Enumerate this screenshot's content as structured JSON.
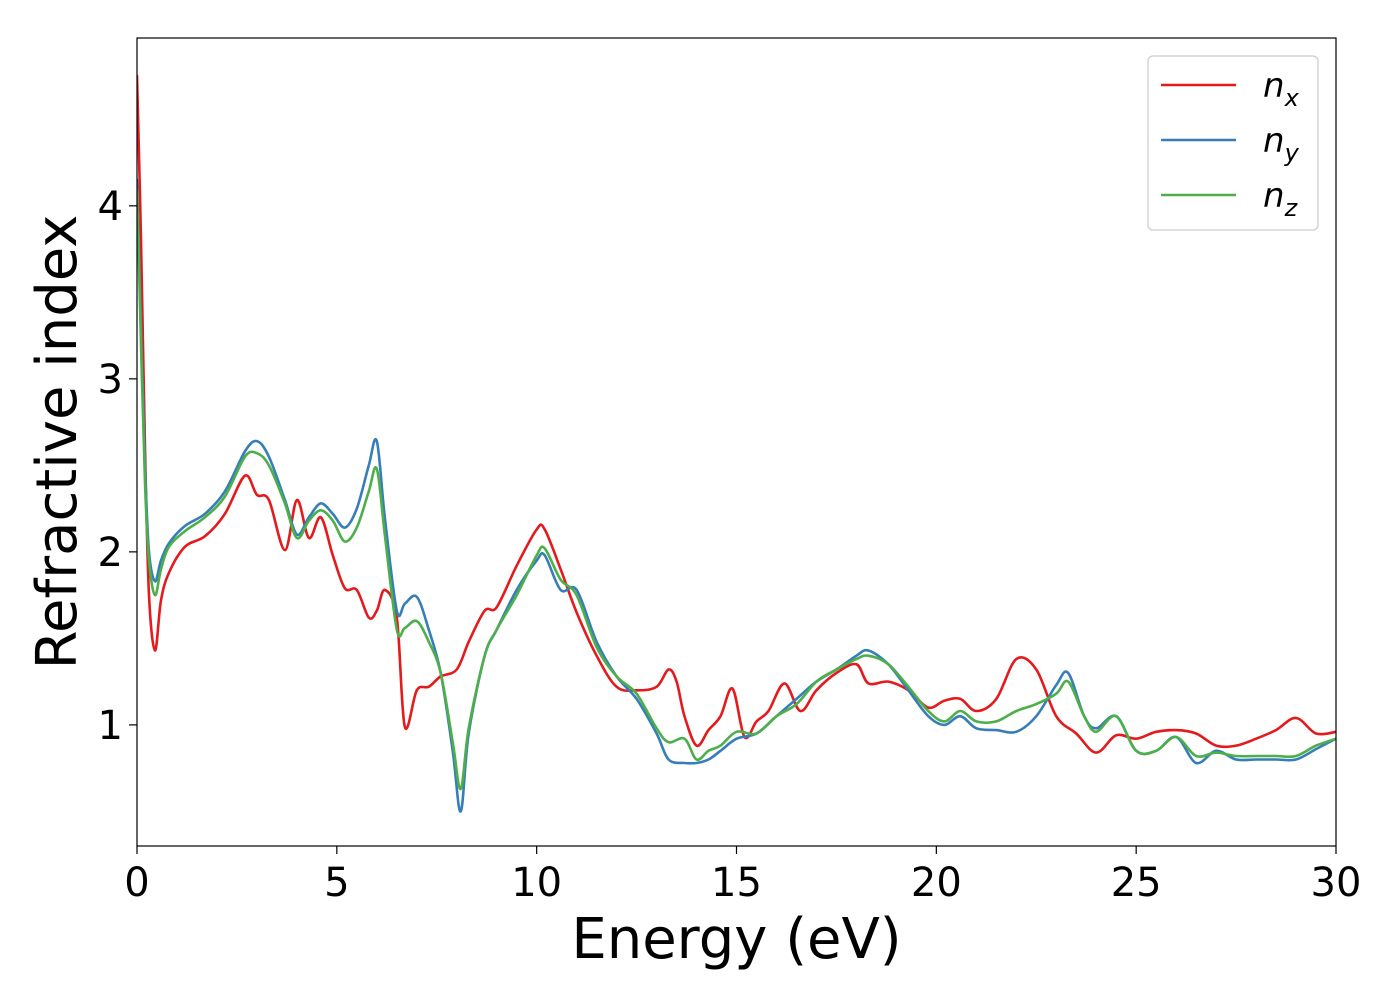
{
  "chart_data": {
    "type": "line",
    "title": "",
    "xlabel": "Energy (eV)",
    "ylabel": "Refractive index",
    "xlim": [
      0,
      30
    ],
    "ylim": [
      0.3,
      4.97
    ],
    "xticks": [
      0,
      5,
      10,
      15,
      20,
      25,
      30
    ],
    "xtick_labels": [
      "0",
      "5",
      "10",
      "15",
      "20",
      "25",
      "30"
    ],
    "yticks": [
      1,
      2,
      3,
      4
    ],
    "ytick_labels": [
      "1",
      "2",
      "3",
      "4"
    ],
    "grid": false,
    "legend_position": "top-right",
    "series": [
      {
        "name": "n_x",
        "label_base": "n",
        "label_sub": "x",
        "color": "#e41a1c",
        "x": [
          0,
          0.1,
          0.2,
          0.3,
          0.45,
          0.6,
          0.8,
          1.2,
          1.7,
          2.2,
          2.7,
          3.0,
          3.3,
          3.7,
          4.0,
          4.3,
          4.6,
          4.9,
          5.2,
          5.5,
          5.8,
          6.0,
          6.2,
          6.5,
          6.7,
          7.0,
          7.3,
          7.6,
          8.0,
          8.3,
          8.7,
          9.0,
          9.5,
          10.0,
          10.2,
          10.6,
          11.0,
          11.5,
          12.0,
          12.5,
          13.0,
          13.3,
          13.5,
          13.7,
          14.0,
          14.3,
          14.6,
          14.9,
          15.2,
          15.5,
          15.8,
          16.2,
          16.6,
          17.0,
          17.5,
          18.0,
          18.3,
          18.8,
          19.3,
          19.8,
          20.2,
          20.6,
          21.0,
          21.5,
          22.0,
          22.5,
          23.0,
          23.5,
          24.0,
          24.5,
          25.0,
          25.5,
          26.0,
          26.5,
          27.0,
          27.5,
          28.0,
          28.5,
          29.0,
          29.5,
          30.0
        ],
        "values": [
          4.75,
          3.8,
          2.6,
          1.75,
          1.43,
          1.72,
          1.88,
          2.03,
          2.09,
          2.22,
          2.44,
          2.33,
          2.3,
          2.01,
          2.3,
          2.08,
          2.2,
          1.98,
          1.79,
          1.78,
          1.62,
          1.66,
          1.78,
          1.62,
          0.99,
          1.2,
          1.22,
          1.28,
          1.32,
          1.48,
          1.66,
          1.68,
          1.92,
          2.13,
          2.13,
          1.9,
          1.65,
          1.4,
          1.22,
          1.2,
          1.22,
          1.32,
          1.25,
          1.05,
          0.88,
          0.97,
          1.05,
          1.21,
          0.93,
          1.02,
          1.08,
          1.24,
          1.08,
          1.2,
          1.3,
          1.35,
          1.24,
          1.25,
          1.2,
          1.1,
          1.14,
          1.15,
          1.08,
          1.15,
          1.38,
          1.32,
          1.05,
          0.95,
          0.84,
          0.94,
          0.92,
          0.96,
          0.97,
          0.95,
          0.88,
          0.88,
          0.92,
          0.97,
          1.04,
          0.95,
          0.96
        ]
      },
      {
        "name": "n_y",
        "label_base": "n",
        "label_sub": "y",
        "color": "#377eb8",
        "x": [
          0,
          0.1,
          0.2,
          0.3,
          0.45,
          0.6,
          0.8,
          1.2,
          1.7,
          2.2,
          2.7,
          3.0,
          3.3,
          3.7,
          4.0,
          4.3,
          4.6,
          4.9,
          5.2,
          5.5,
          5.8,
          6.0,
          6.2,
          6.5,
          6.7,
          7.0,
          7.3,
          7.6,
          7.9,
          8.1,
          8.3,
          8.7,
          9.0,
          9.5,
          10.0,
          10.2,
          10.6,
          11.0,
          11.5,
          12.0,
          12.5,
          13.0,
          13.3,
          13.7,
          14.0,
          14.3,
          14.6,
          15.0,
          15.5,
          16.0,
          16.5,
          17.0,
          17.5,
          18.0,
          18.3,
          18.8,
          19.3,
          19.8,
          20.2,
          20.6,
          21.0,
          21.5,
          22.0,
          22.5,
          23.0,
          23.3,
          23.7,
          24.0,
          24.5,
          25.0,
          25.5,
          26.0,
          26.5,
          27.0,
          27.5,
          28.0,
          28.5,
          29.0,
          29.5,
          30.0
        ],
        "values": [
          4.15,
          3.3,
          2.5,
          2.0,
          1.83,
          1.95,
          2.05,
          2.15,
          2.22,
          2.35,
          2.58,
          2.64,
          2.55,
          2.3,
          2.1,
          2.2,
          2.28,
          2.22,
          2.14,
          2.25,
          2.5,
          2.64,
          2.2,
          1.66,
          1.7,
          1.74,
          1.55,
          1.3,
          0.85,
          0.5,
          0.95,
          1.4,
          1.55,
          1.78,
          1.95,
          1.98,
          1.78,
          1.78,
          1.48,
          1.28,
          1.15,
          0.95,
          0.8,
          0.78,
          0.78,
          0.8,
          0.85,
          0.92,
          0.95,
          1.05,
          1.15,
          1.25,
          1.32,
          1.4,
          1.43,
          1.35,
          1.2,
          1.05,
          1.0,
          1.05,
          0.98,
          0.97,
          0.96,
          1.05,
          1.23,
          1.3,
          1.05,
          0.98,
          1.05,
          0.85,
          0.85,
          0.93,
          0.78,
          0.85,
          0.8,
          0.8,
          0.8,
          0.8,
          0.86,
          0.92
        ]
      },
      {
        "name": "n_z",
        "label_base": "n",
        "label_sub": "z",
        "color": "#4daf4a",
        "x": [
          0,
          0.1,
          0.2,
          0.3,
          0.45,
          0.6,
          0.8,
          1.2,
          1.7,
          2.2,
          2.7,
          3.0,
          3.3,
          3.7,
          4.0,
          4.3,
          4.6,
          4.9,
          5.2,
          5.5,
          5.8,
          6.0,
          6.2,
          6.5,
          6.7,
          7.0,
          7.3,
          7.6,
          7.9,
          8.1,
          8.3,
          8.7,
          9.0,
          9.5,
          10.0,
          10.2,
          10.6,
          11.0,
          11.5,
          12.0,
          12.5,
          13.0,
          13.3,
          13.7,
          14.0,
          14.3,
          14.6,
          15.0,
          15.5,
          16.0,
          16.5,
          17.0,
          17.5,
          18.0,
          18.3,
          18.8,
          19.3,
          19.8,
          20.2,
          20.6,
          21.0,
          21.5,
          22.0,
          22.5,
          23.0,
          23.3,
          23.7,
          24.0,
          24.5,
          25.0,
          25.5,
          26.0,
          26.5,
          27.0,
          27.5,
          28.0,
          28.5,
          29.0,
          29.5,
          30.0
        ],
        "values": [
          4.1,
          3.2,
          2.4,
          1.95,
          1.75,
          1.9,
          2.03,
          2.12,
          2.2,
          2.32,
          2.55,
          2.57,
          2.5,
          2.28,
          2.08,
          2.18,
          2.24,
          2.18,
          2.06,
          2.14,
          2.35,
          2.48,
          2.1,
          1.55,
          1.56,
          1.6,
          1.48,
          1.3,
          0.9,
          0.63,
          0.98,
          1.4,
          1.55,
          1.75,
          1.98,
          2.02,
          1.84,
          1.75,
          1.45,
          1.28,
          1.18,
          0.98,
          0.9,
          0.92,
          0.8,
          0.85,
          0.88,
          0.96,
          0.95,
          1.05,
          1.12,
          1.25,
          1.32,
          1.38,
          1.4,
          1.35,
          1.22,
          1.08,
          1.02,
          1.08,
          1.02,
          1.02,
          1.08,
          1.12,
          1.18,
          1.25,
          1.05,
          0.96,
          1.05,
          0.85,
          0.85,
          0.93,
          0.82,
          0.84,
          0.82,
          0.82,
          0.82,
          0.82,
          0.88,
          0.92
        ]
      }
    ]
  }
}
